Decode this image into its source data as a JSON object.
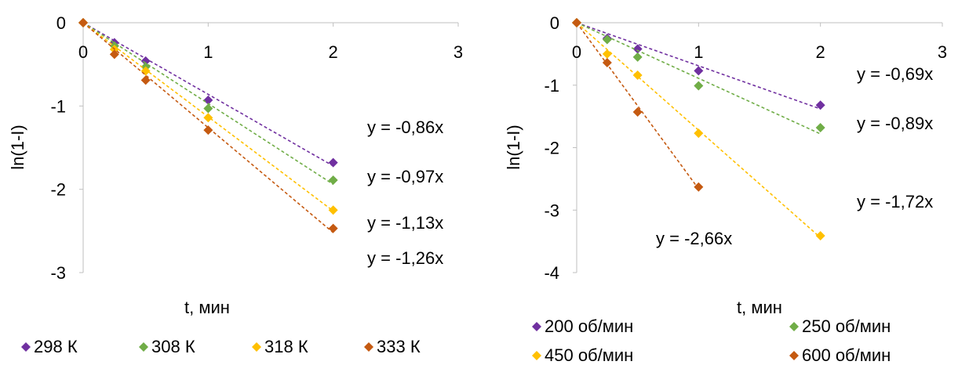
{
  "chart_data": [
    {
      "type": "scatter",
      "title": "",
      "xlabel": "t, мин",
      "ylabel": "ln(1-I)",
      "xlim": [
        0,
        3
      ],
      "ylim": [
        -3,
        0
      ],
      "xticks": [
        0,
        1,
        2,
        3
      ],
      "yticks": [
        0,
        -1,
        -2,
        -3
      ],
      "grid": false,
      "legend_position": "bottom",
      "trendline": "linear, dashed, through origin",
      "series": [
        {
          "name": "298 К",
          "color": "#7030A0",
          "x": [
            0,
            0.25,
            0.5,
            1,
            2
          ],
          "y": [
            0,
            -0.24,
            -0.46,
            -0.93,
            -1.68
          ],
          "equation": "y = -0,86x"
        },
        {
          "name": "308 К",
          "color": "#70AD47",
          "x": [
            0,
            0.25,
            0.5,
            1,
            2
          ],
          "y": [
            0,
            -0.28,
            -0.53,
            -1.03,
            -1.89
          ],
          "equation": "y = -0,97x"
        },
        {
          "name": "318 К",
          "color": "#FFC000",
          "x": [
            0,
            0.25,
            0.5,
            1,
            2
          ],
          "y": [
            0,
            -0.32,
            -0.58,
            -1.14,
            -2.25
          ],
          "equation": "y = -1,13x"
        },
        {
          "name": "333 К",
          "color": "#C55A11",
          "x": [
            0,
            0.25,
            0.5,
            1,
            2
          ],
          "y": [
            0,
            -0.38,
            -0.69,
            -1.29,
            -2.47
          ],
          "equation": "y = -1,26x"
        }
      ]
    },
    {
      "type": "scatter",
      "title": "",
      "xlabel": "t, мин",
      "ylabel": "ln(1-I)",
      "xlim": [
        0,
        3
      ],
      "ylim": [
        -4,
        0
      ],
      "xticks": [
        0,
        1,
        2,
        3
      ],
      "yticks": [
        0,
        -1,
        -2,
        -3,
        -4
      ],
      "grid": false,
      "legend_position": "bottom",
      "trendline": "linear, dashed, through origin",
      "series": [
        {
          "name": "200 об/мин",
          "color": "#7030A0",
          "x": [
            0,
            0.25,
            0.5,
            1,
            2
          ],
          "y": [
            0,
            -0.25,
            -0.42,
            -0.77,
            -1.32
          ],
          "equation": "y = -0,69x"
        },
        {
          "name": "250 об/мин",
          "color": "#70AD47",
          "x": [
            0,
            0.25,
            0.5,
            1,
            2
          ],
          "y": [
            0,
            -0.27,
            -0.55,
            -1.01,
            -1.68
          ],
          "equation": "y = -0,89x"
        },
        {
          "name": "450 об/мин",
          "color": "#FFC000",
          "x": [
            0,
            0.25,
            0.5,
            1,
            2
          ],
          "y": [
            0,
            -0.5,
            -0.84,
            -1.77,
            -3.41
          ],
          "equation": "y = -1,72x"
        },
        {
          "name": "600 об/мин",
          "color": "#C55A11",
          "x": [
            0,
            0.25,
            0.5,
            1
          ],
          "y": [
            0,
            -0.64,
            -1.43,
            -2.63
          ],
          "equation": "y = -2,66x"
        }
      ]
    }
  ]
}
